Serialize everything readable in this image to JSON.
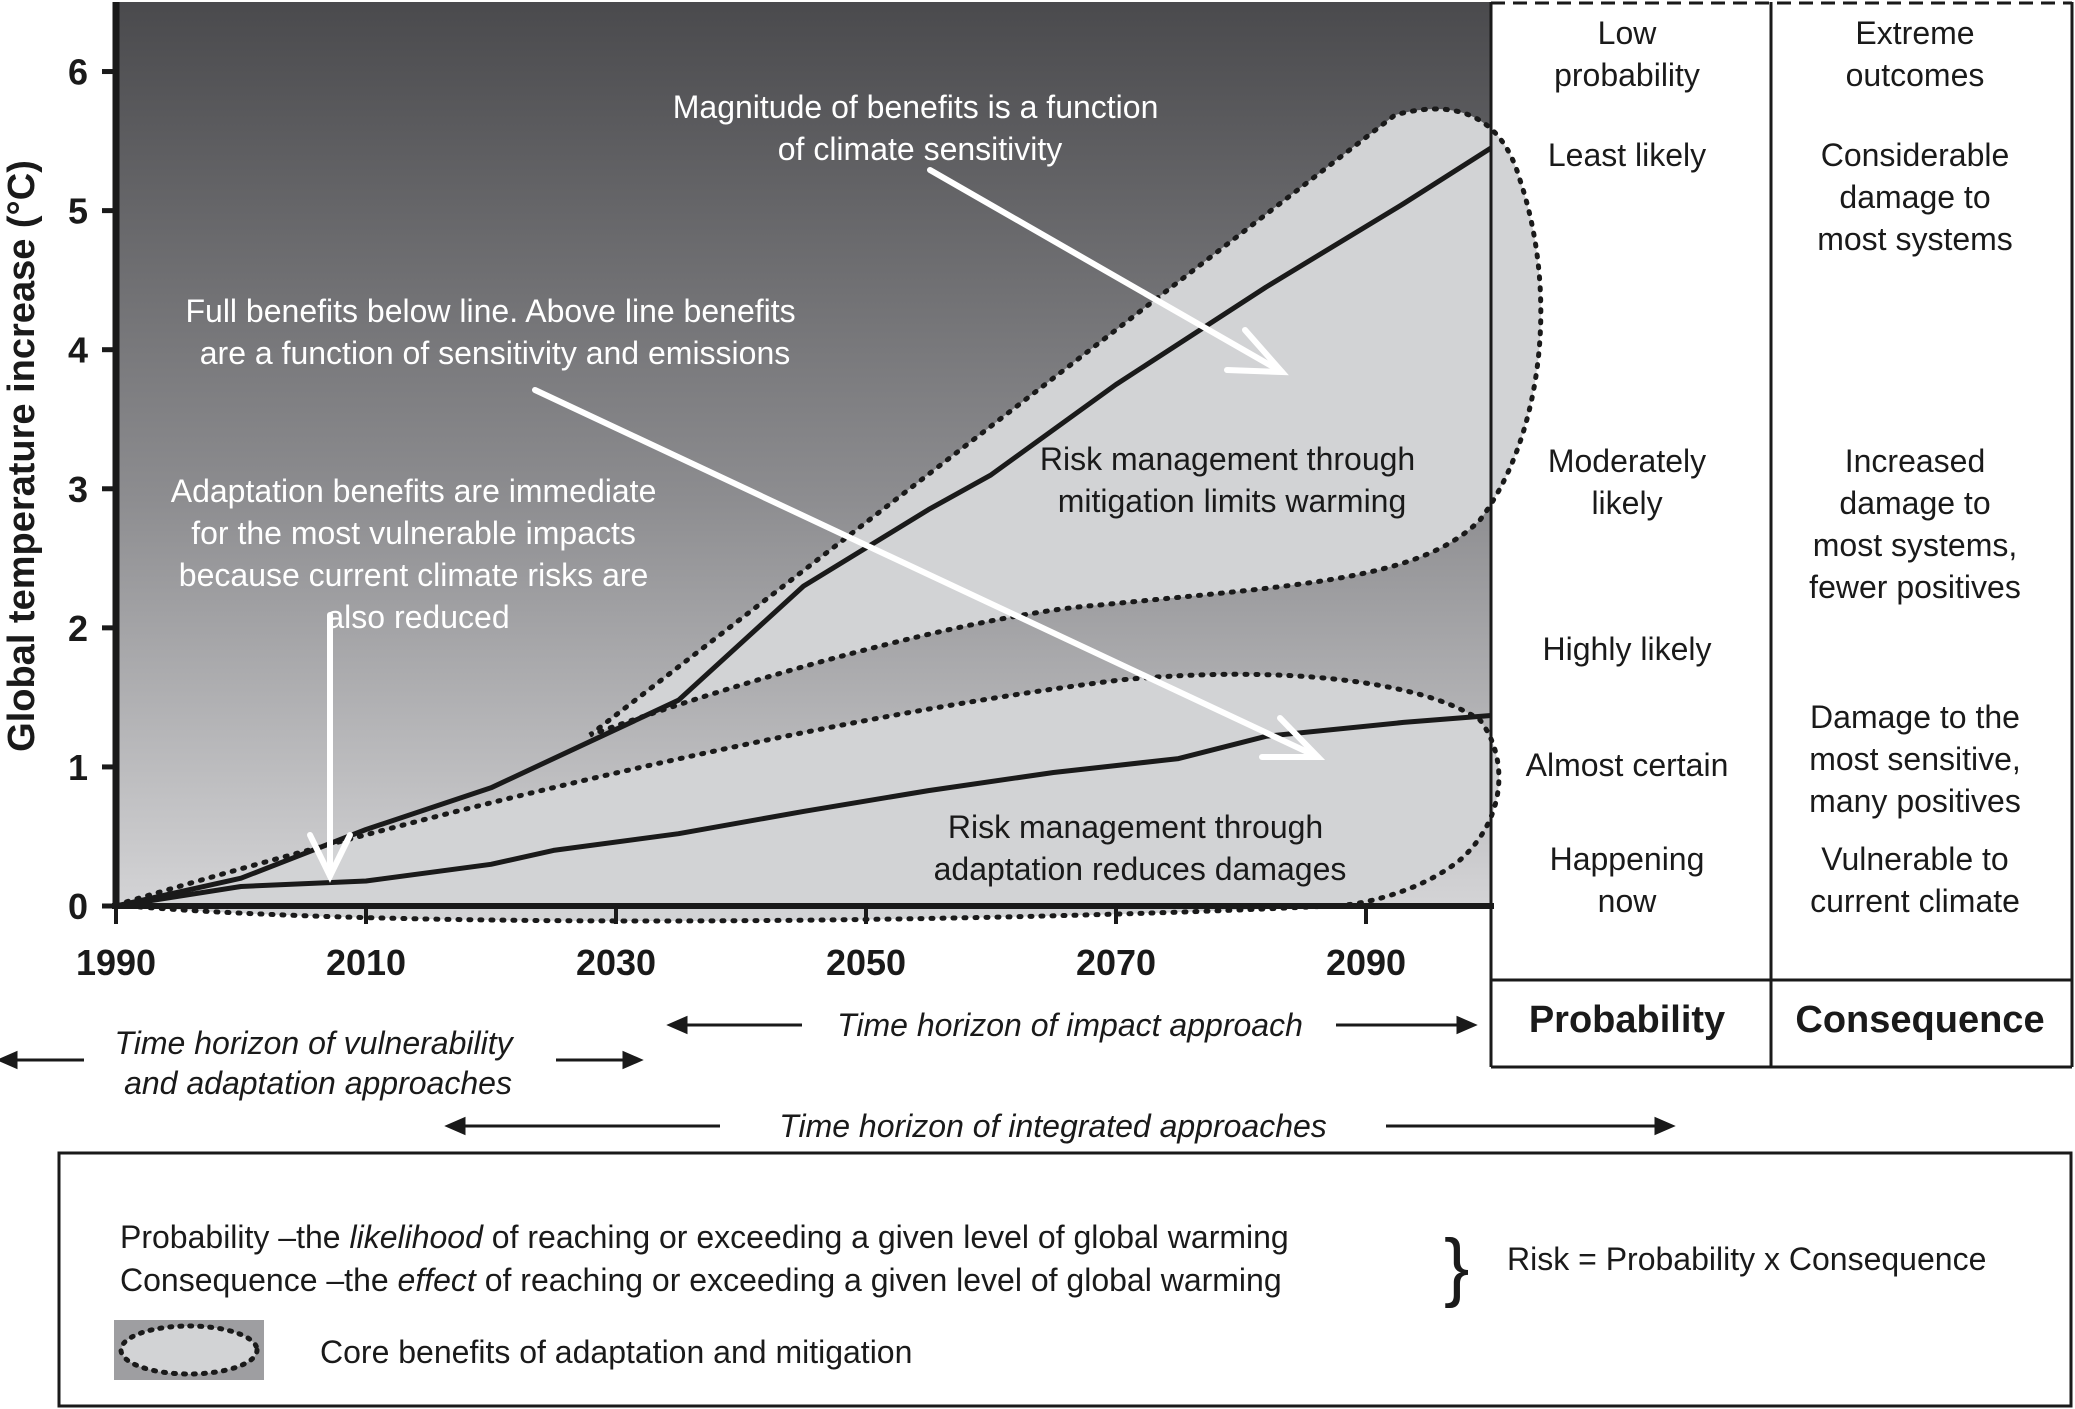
{
  "chart_data": {
    "type": "line",
    "ylabel": "Global temperature increase (°C)",
    "xlim": [
      1990,
      2100
    ],
    "ylim": [
      0,
      6.5
    ],
    "x_ticks": [
      1990,
      2010,
      2030,
      2050,
      2070,
      2090
    ],
    "y_ticks": [
      0,
      1,
      2,
      3,
      4,
      5,
      6
    ],
    "grid": false,
    "series": [
      {
        "x": [
          1990,
          2000,
          2010,
          2020,
          2035,
          2045,
          2055,
          2060,
          2070,
          2082,
          2093,
          2100
        ],
        "y": [
          0,
          0.2,
          0.55,
          0.85,
          1.48,
          2.3,
          2.85,
          3.1,
          3.75,
          4.45,
          5.05,
          5.45
        ]
      },
      {
        "x": [
          1990,
          2000,
          2010,
          2020,
          2025,
          2035,
          2045,
          2055,
          2065,
          2075,
          2082,
          2093,
          2100
        ],
        "y": [
          0,
          0.14,
          0.18,
          0.3,
          0.4,
          0.52,
          0.68,
          0.83,
          0.96,
          1.06,
          1.22,
          1.32,
          1.37
        ]
      }
    ],
    "annotations": {
      "magnitude": [
        "Magnitude of benefits is a function",
        "of climate sensitivity"
      ],
      "full_benefits": [
        "Full benefits below line. Above line benefits",
        "are a function of sensitivity and emissions"
      ],
      "adaptation_immediate": [
        "Adaptation benefits are immediate",
        "for the most vulnerable impacts",
        "because current climate risks are",
        "also reduced"
      ],
      "mitigation_zone": [
        "Risk management through",
        "mitigation limits warming"
      ],
      "adaptation_zone": [
        "Risk management through",
        "adaptation reduces damages"
      ]
    },
    "horizons": {
      "vulnerability": [
        "Time horizon of vulnerability",
        "and adaptation approaches"
      ],
      "impact": "Time horizon of impact approach",
      "integrated": "Time horizon of integrated  approaches"
    }
  },
  "risk_table": {
    "probability_header": "Probability",
    "consequence_header": "Consequence",
    "rows": [
      {
        "probability": [
          "Low",
          "probability"
        ],
        "consequence": [
          "Extreme",
          "outcomes"
        ]
      },
      {
        "probability": [
          "Least likely"
        ],
        "consequence": [
          "Considerable",
          "damage to",
          "most systems"
        ]
      },
      {
        "probability": [
          "Moderately",
          "likely"
        ],
        "consequence": [
          "Increased",
          "damage to",
          "most systems,",
          "fewer positives"
        ]
      },
      {
        "probability": [
          "Highly likely"
        ],
        "consequence": []
      },
      {
        "probability": [
          "Almost certain"
        ],
        "consequence": [
          "Damage to the",
          "most sensitive,",
          "many positives"
        ]
      },
      {
        "probability": [
          "Happening",
          "now"
        ],
        "consequence": [
          "Vulnerable to",
          "current climate"
        ]
      }
    ]
  },
  "legend": {
    "probability_prefix": "Probability –the ",
    "probability_em": "likelihood",
    "probability_suffix": " of reaching or exceeding a given level of global warming",
    "consequence_prefix": "Consequence –the ",
    "consequence_em": "effect",
    "consequence_suffix": " of reaching or exceeding a given level of global warming",
    "brace": "}",
    "risk_formula": "Risk = Probability x Consequence",
    "core_benefits": "Core benefits of adaptation and mitigation"
  },
  "colors": {
    "background_top": "#4a4a4d",
    "background_bottom": "#d4d4d6",
    "zone_fill": "#d2d3d5",
    "line": "#1a1a1a"
  }
}
